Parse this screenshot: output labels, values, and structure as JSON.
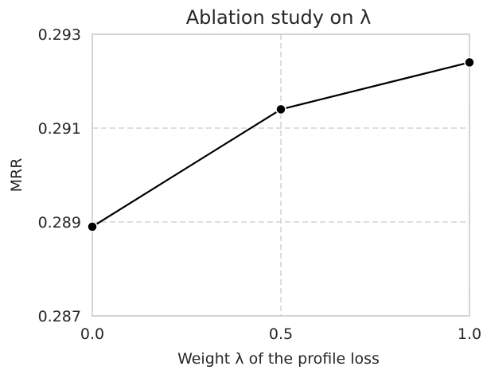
{
  "chart_data": {
    "type": "line",
    "title": "Ablation study on λ",
    "xlabel": "Weight λ of the profile loss",
    "ylabel": "MRR",
    "x": [
      0.0,
      0.5,
      1.0
    ],
    "series": [
      {
        "values": [
          0.2889,
          0.2914,
          0.2924
        ],
        "color": "#000000"
      }
    ],
    "xlim": [
      0.0,
      1.0
    ],
    "ylim": [
      0.287,
      0.293
    ],
    "xticks": [
      0.0,
      0.5,
      1.0
    ],
    "xtick_labels": [
      "0.0",
      "0.5",
      "1.0"
    ],
    "yticks": [
      0.287,
      0.289,
      0.291,
      0.293
    ],
    "ytick_labels": [
      "0.287",
      "0.289",
      "0.291",
      "0.293"
    ],
    "grid": true,
    "grid_style": "dashed",
    "colors": {
      "line": "#000000",
      "marker": "#000000",
      "grid": "#cccccc",
      "spine": "#cccccc",
      "text": "#262626"
    }
  }
}
